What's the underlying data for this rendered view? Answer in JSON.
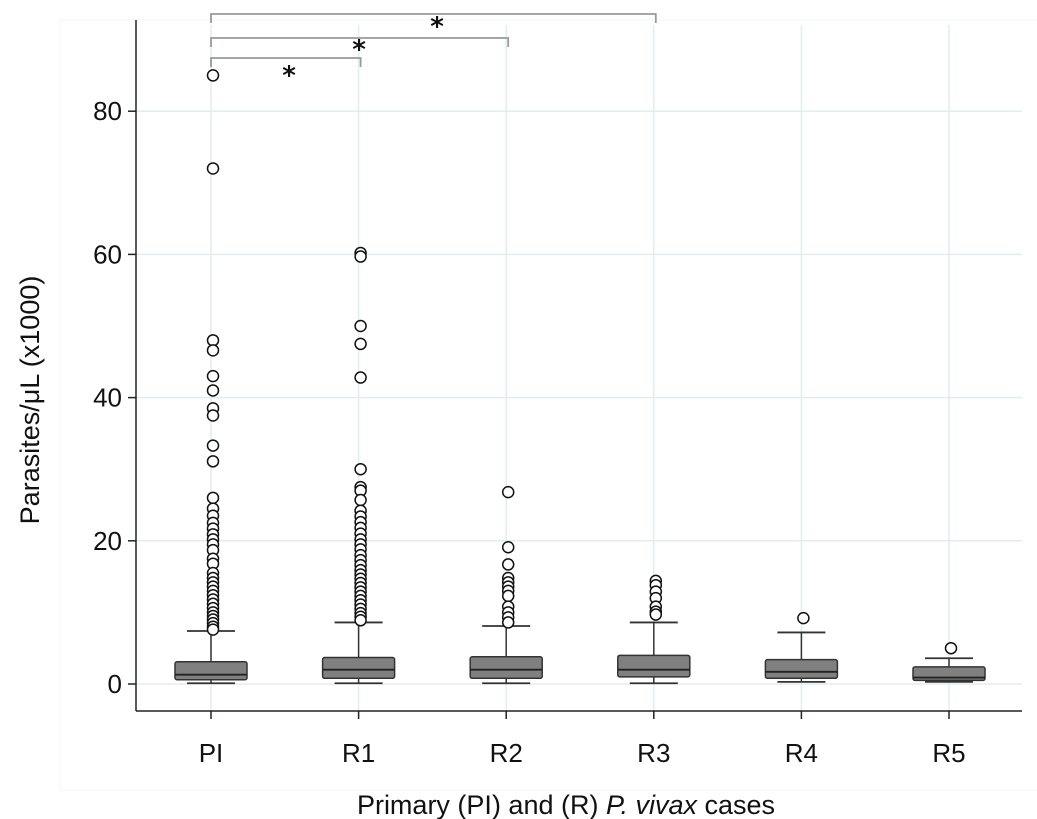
{
  "chart_data": {
    "type": "box",
    "xlabel": {
      "pre": "Primary (PI) and (R) ",
      "italic": "P. vivax",
      "post": " cases"
    },
    "ylabel": "Parasites/μL (x1000)",
    "ylim": [
      -3.5,
      89
    ],
    "yticks": [
      0,
      20,
      40,
      60,
      80
    ],
    "grid": true,
    "categories": [
      "PI",
      "R1",
      "R2",
      "R3",
      "R4",
      "R5"
    ],
    "boxes": [
      {
        "category": "PI",
        "whisker_low": 0.1,
        "q1": 0.6,
        "median": 1.3,
        "q3": 3.1,
        "whisker_high": 7.4,
        "outliers": [
          85,
          72,
          48,
          46.6,
          43,
          41,
          38.5,
          37.5,
          33.3,
          31.1,
          26,
          24.5,
          23.5,
          22.5,
          21.7,
          20.9,
          20.2,
          19.5,
          18.7,
          17.5,
          16.8,
          15.5,
          14.8,
          14.2,
          13.6,
          13,
          12.4,
          11.8,
          11.2,
          10.6,
          10,
          9.5,
          9,
          8.5,
          8,
          7.6
        ]
      },
      {
        "category": "R1",
        "whisker_low": 0.1,
        "q1": 0.8,
        "median": 2,
        "q3": 3.7,
        "whisker_high": 8.6,
        "outliers": [
          60.2,
          59.7,
          50,
          47.5,
          42.8,
          30,
          27.5,
          27,
          25.7,
          24.2,
          23.4,
          22.6,
          21.8,
          21,
          20.2,
          19.5,
          18.8,
          18,
          17.3,
          16.6,
          15.9,
          15.3,
          14.7,
          14.1,
          13.5,
          12.9,
          12.3,
          11.7,
          11.1,
          10.5,
          9.9,
          9.4,
          8.9
        ]
      },
      {
        "category": "R2",
        "whisker_low": 0.1,
        "q1": 0.8,
        "median": 2,
        "q3": 3.8,
        "whisker_high": 8.1,
        "outliers": [
          26.8,
          19.1,
          16.7,
          14.8,
          14.2,
          13.6,
          13,
          12.3,
          10.8,
          10,
          9.3,
          8.6
        ]
      },
      {
        "category": "R3",
        "whisker_low": 0.1,
        "q1": 1,
        "median": 2,
        "q3": 4,
        "whisker_high": 8.6,
        "outliers": [
          14.4,
          13.8,
          12.9,
          12,
          10.8,
          10.1,
          9.7
        ]
      },
      {
        "category": "R4",
        "whisker_low": 0.3,
        "q1": 0.8,
        "median": 1.7,
        "q3": 3.4,
        "whisker_high": 7.2,
        "outliers": [
          9.2
        ]
      },
      {
        "category": "R5",
        "whisker_low": 0.3,
        "q1": 0.5,
        "median": 0.9,
        "q3": 2.4,
        "whisker_high": 3.6,
        "outliers": [
          5
        ]
      }
    ],
    "significance": [
      {
        "from": "PI",
        "to": "R1",
        "label": "*"
      },
      {
        "from": "PI",
        "to": "R2",
        "label": "*"
      },
      {
        "from": "PI",
        "to": "R3",
        "label": "*"
      }
    ],
    "colors": {
      "box_fill": "#808080",
      "box_stroke": "#333333",
      "outlier_stroke": "#111111",
      "grid": "#dfeeee",
      "bracket": "#999999"
    }
  }
}
